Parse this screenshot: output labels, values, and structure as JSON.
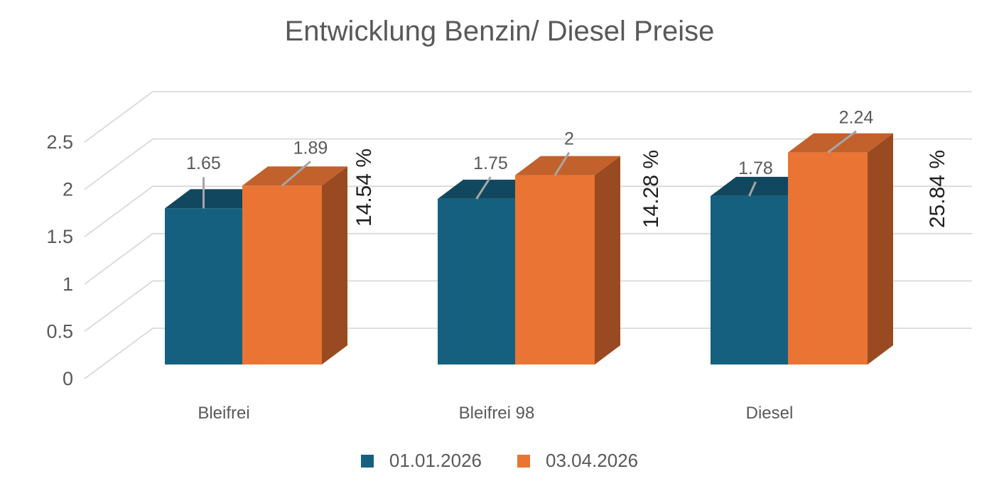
{
  "title": "Entwicklung Benzin/ Diesel Preise",
  "colors": {
    "series1_front": "#16607F",
    "series1_top": "#11485F",
    "series2_front": "#E97434",
    "series2_top": "#C2612B",
    "series2_side": "#9A4A20",
    "gridline": "#D9D9D9",
    "leader_line": "#A6A6A6",
    "text_gray": "#595959",
    "text_dark": "#1F1F1F"
  },
  "chart_data": {
    "type": "bar",
    "subtype": "3d-clustered-column",
    "title": "Entwicklung Benzin/ Diesel Preise",
    "categories": [
      "Bleifrei",
      "Bleifrei 98",
      "Diesel"
    ],
    "series": [
      {
        "name": "01.01.2026",
        "color": "#16607F",
        "values": [
          1.65,
          1.75,
          1.78
        ],
        "value_labels": [
          "1.65",
          "1.75",
          "1.78"
        ]
      },
      {
        "name": "03.04.2026",
        "color": "#E97434",
        "values": [
          1.89,
          2,
          2.24
        ],
        "value_labels": [
          "1.89",
          "2",
          "2.24"
        ]
      }
    ],
    "percent_change_labels": [
      "14.54 %",
      "14.28 %",
      "25.84  %"
    ],
    "y_ticks": [
      0,
      0.5,
      1,
      1.5,
      2,
      2.5
    ],
    "y_tick_labels": [
      "0",
      "0.5",
      "1",
      "1.5",
      "2",
      "2.5"
    ],
    "ylim": [
      0,
      2.5
    ],
    "grid": true,
    "legend_position": "bottom",
    "layout_hints": {
      "label_offsets_series1": [
        [
          0,
          -64
        ],
        [
          20,
          -51
        ],
        [
          9,
          -40
        ]
      ],
      "label_offsets_series2": [
        [
          40,
          -54
        ],
        [
          20,
          -52
        ],
        [
          40,
          -50
        ]
      ],
      "percent_label_centers": [
        [
          512,
          264
        ],
        [
          916,
          266
        ],
        [
          1319,
          266
        ]
      ]
    }
  },
  "legend": {
    "items": [
      {
        "label": "01.01.2026"
      },
      {
        "label": "03.04.2026"
      }
    ]
  }
}
